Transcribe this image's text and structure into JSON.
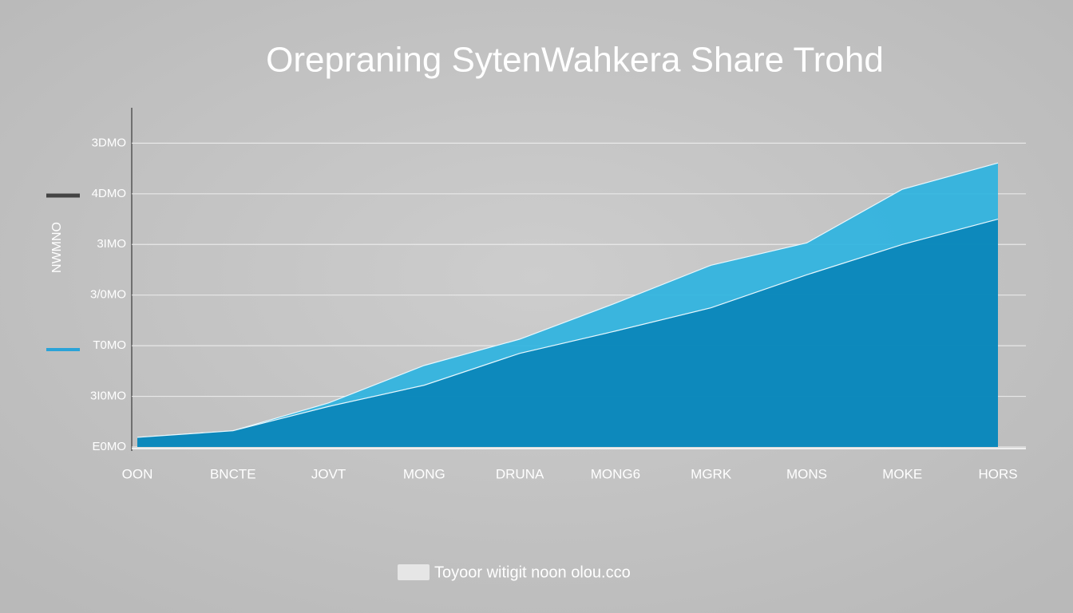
{
  "chart_data": {
    "type": "area",
    "title": "Orepraning SytenWahkera Share Trohd",
    "y_label": "NWMNO",
    "categories": [
      "OON",
      "BNCTE",
      "JOVT",
      "MONG",
      "DRUNA",
      "MONG6",
      "MGRK",
      "MONS",
      "MOKE",
      "HORS"
    ],
    "series": [
      {
        "name": "Toyoor witigit noon olou.cco",
        "color": "#2eb3e0",
        "values": [
          0.19,
          0.32,
          0.87,
          1.61,
          2.13,
          2.84,
          3.59,
          4.03,
          5.09,
          5.61
        ]
      },
      {
        "color": "#0a86b8",
        "values": [
          0.19,
          0.32,
          0.8,
          1.22,
          1.85,
          2.29,
          2.75,
          3.4,
          4.0,
          4.5
        ]
      }
    ],
    "ylim": [
      0,
      6.7
    ],
    "yticks": [
      {
        "value": 0,
        "label": "E0MO"
      },
      {
        "value": 1,
        "label": "3I0MO"
      },
      {
        "value": 2,
        "label": "T0MO"
      },
      {
        "value": 3,
        "label": "3/0MO"
      },
      {
        "value": 4,
        "label": "3IMO"
      },
      {
        "value": 5,
        "label": "4DMO"
      },
      {
        "value": 6,
        "label": "3DMO"
      }
    ],
    "grid": true
  }
}
